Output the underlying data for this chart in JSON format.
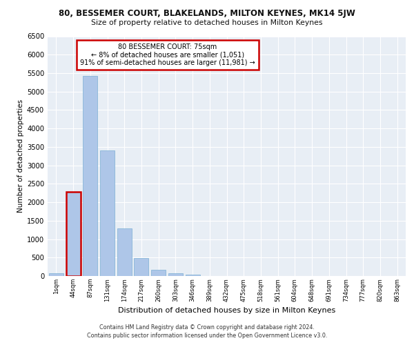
{
  "title_line1": "80, BESSEMER COURT, BLAKELANDS, MILTON KEYNES, MK14 5JW",
  "title_line2": "Size of property relative to detached houses in Milton Keynes",
  "xlabel": "Distribution of detached houses by size in Milton Keynes",
  "ylabel": "Number of detached properties",
  "footer_line1": "Contains HM Land Registry data © Crown copyright and database right 2024.",
  "footer_line2": "Contains public sector information licensed under the Open Government Licence v3.0.",
  "annotation_title": "80 BESSEMER COURT: 75sqm",
  "annotation_line1": "← 8% of detached houses are smaller (1,051)",
  "annotation_line2": "91% of semi-detached houses are larger (11,981) →",
  "bar_labels": [
    "1sqm",
    "44sqm",
    "87sqm",
    "131sqm",
    "174sqm",
    "217sqm",
    "260sqm",
    "303sqm",
    "346sqm",
    "389sqm",
    "432sqm",
    "475sqm",
    "518sqm",
    "561sqm",
    "604sqm",
    "648sqm",
    "691sqm",
    "734sqm",
    "777sqm",
    "820sqm",
    "863sqm"
  ],
  "bar_values": [
    75,
    2280,
    5430,
    3400,
    1295,
    480,
    165,
    80,
    45,
    0,
    0,
    0,
    0,
    0,
    0,
    0,
    0,
    0,
    0,
    0,
    0
  ],
  "highlight_bar_index": 1,
  "bar_color": "#aec6e8",
  "bar_edge_color": "#7aafd4",
  "highlight_edge_color": "#cc0000",
  "annotation_box_color": "#cc0000",
  "ylim": [
    0,
    6500
  ],
  "yticks": [
    0,
    500,
    1000,
    1500,
    2000,
    2500,
    3000,
    3500,
    4000,
    4500,
    5000,
    5500,
    6000,
    6500
  ],
  "bg_color": "#e8eef5",
  "grid_color": "#ffffff",
  "fig_bg_color": "#ffffff"
}
